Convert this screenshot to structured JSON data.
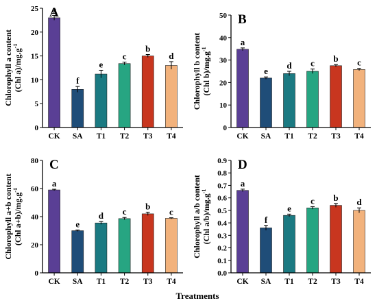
{
  "colors": {
    "CK": "#5a3f95",
    "SA": "#1f4d78",
    "T1": "#1b7a82",
    "T2": "#27a582",
    "T3": "#c8361f",
    "T4": "#f2b27c"
  },
  "x_axis_title": "Treatments",
  "chart_data": [
    {
      "panel": "A",
      "type": "bar",
      "categories": [
        "CK",
        "SA",
        "T1",
        "T2",
        "T3",
        "T4"
      ],
      "values": [
        23.0,
        8.0,
        11.2,
        13.4,
        15.0,
        13.0
      ],
      "errors": [
        0.5,
        0.6,
        0.8,
        0.3,
        0.3,
        0.8
      ],
      "letters": [
        "a",
        "f",
        "e",
        "c",
        "b",
        "d"
      ],
      "ylabel_line1": "Chlorophyll a content",
      "ylabel_line2": "(Chl a)/mg.g",
      "ylabel_sup": "-1",
      "ylim": [
        0,
        25
      ],
      "yticks": [
        "0",
        "5",
        "10",
        "15",
        "20",
        "25"
      ]
    },
    {
      "panel": "B",
      "type": "bar",
      "categories": [
        "CK",
        "SA",
        "T1",
        "T2",
        "T3",
        "T4"
      ],
      "values": [
        34.8,
        22.0,
        24.0,
        25.0,
        27.5,
        25.8
      ],
      "errors": [
        0.6,
        0.5,
        1.0,
        1.0,
        0.5,
        0.5
      ],
      "letters": [
        "a",
        "e",
        "d",
        "c",
        "b",
        "c"
      ],
      "ylabel_line1": "Chlorophyll b content",
      "ylabel_line2": "(Chl b)/mg.g",
      "ylabel_sup": "-1",
      "ylim": [
        0,
        50
      ],
      "yticks": [
        "0",
        "10",
        "20",
        "30",
        "40",
        "50"
      ]
    },
    {
      "panel": "C",
      "type": "bar",
      "categories": [
        "CK",
        "SA",
        "T1",
        "T2",
        "T3",
        "T4"
      ],
      "values": [
        59.0,
        30.0,
        35.5,
        38.6,
        42.0,
        38.8
      ],
      "errors": [
        0.5,
        0.5,
        1.0,
        0.8,
        1.2,
        0.4
      ],
      "letters": [
        "a",
        "e",
        "d",
        "c",
        "b",
        "c"
      ],
      "ylabel_line1": "Chlorophyll a+b content",
      "ylabel_line2": "(Chl a+b)/mg.g",
      "ylabel_sup": "-1",
      "ylim": [
        0,
        80
      ],
      "yticks": [
        "0",
        "20",
        "40",
        "60",
        "80"
      ]
    },
    {
      "panel": "D",
      "type": "bar",
      "categories": [
        "CK",
        "SA",
        "T1",
        "T2",
        "T3",
        "T4"
      ],
      "values": [
        0.66,
        0.36,
        0.46,
        0.52,
        0.54,
        0.5
      ],
      "errors": [
        0.01,
        0.02,
        0.01,
        0.01,
        0.015,
        0.02
      ],
      "letters": [
        "a",
        "f",
        "e",
        "c",
        "b",
        "d"
      ],
      "ylabel_line1": "Chlorophyll a/b content",
      "ylabel_line2": "(Chl a/b)/mg.g",
      "ylabel_sup": "-1",
      "ylim": [
        0,
        0.9
      ],
      "yticks": [
        "0.0",
        "0.1",
        "0.2",
        "0.3",
        "0.4",
        "0.5",
        "0.6",
        "0.7",
        "0.8",
        "0.9"
      ]
    }
  ]
}
